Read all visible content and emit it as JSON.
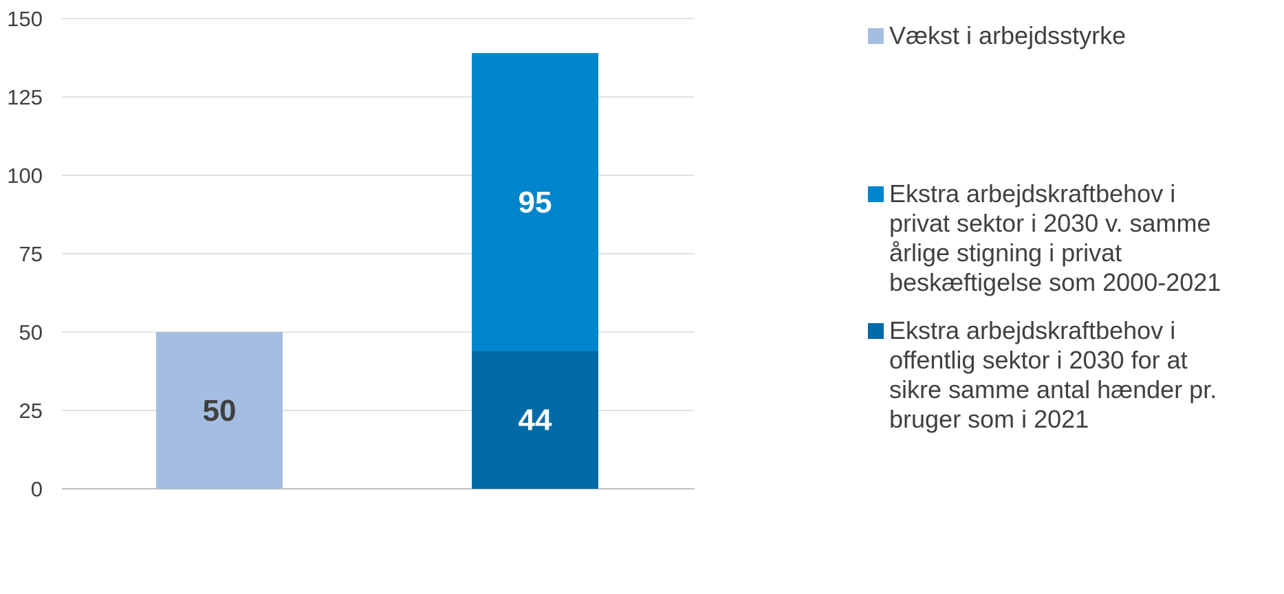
{
  "chart_data": {
    "type": "bar",
    "stacked": true,
    "categories": [
      "",
      ""
    ],
    "ylim": [
      0,
      150
    ],
    "yticks": [
      0,
      25,
      50,
      75,
      100,
      125,
      150
    ],
    "grid": true,
    "legend_position": "right",
    "series": [
      {
        "name": "Vækst i arbejdsstyrke",
        "values": [
          50,
          0
        ],
        "color": "#a3bee0",
        "label_color": "#404040",
        "labels": [
          "50",
          ""
        ]
      },
      {
        "name": "Ekstra arbejdskraftbehov i offentlig  sektor i 2030 for at sikre samme antal hænder pr. bruger som i 2021",
        "values": [
          0,
          44
        ],
        "color": "#006aa7",
        "label_color": "#ffffff",
        "labels": [
          "",
          "44"
        ]
      },
      {
        "name": "Ekstra arbejdskraftbehov i privat sektor i 2030 v. samme årlige stigning i privat beskæftigelse som 2000-2021",
        "values": [
          0,
          95
        ],
        "color": "#0085cc",
        "label_color": "#ffffff",
        "labels": [
          "",
          "95"
        ]
      }
    ],
    "legend": [
      {
        "label": "Vækst i arbejdsstyrke",
        "lines": "Vækst i arbejdsstyrke",
        "color": "#a3bee0"
      },
      {
        "label": "Ekstra arbejdskraftbehov i privat sektor i 2030 v. samme årlige stigning i privat beskæftigelse som 2000-2021",
        "lines": "Ekstra arbejdskraftbehov i\nprivat sektor i 2030 v. samme\nårlige stigning i privat\nbeskæftigelse som 2000-2021",
        "color": "#0085cc"
      },
      {
        "label": "Ekstra arbejdskraftbehov i offentlig  sektor i 2030 for at sikre samme antal hænder pr. bruger som i 2021",
        "lines": "Ekstra arbejdskraftbehov i\noffentlig  sektor i 2030 for at\nsikre samme antal hænder pr.\nbruger som i 2021",
        "color": "#006aa7"
      }
    ]
  }
}
